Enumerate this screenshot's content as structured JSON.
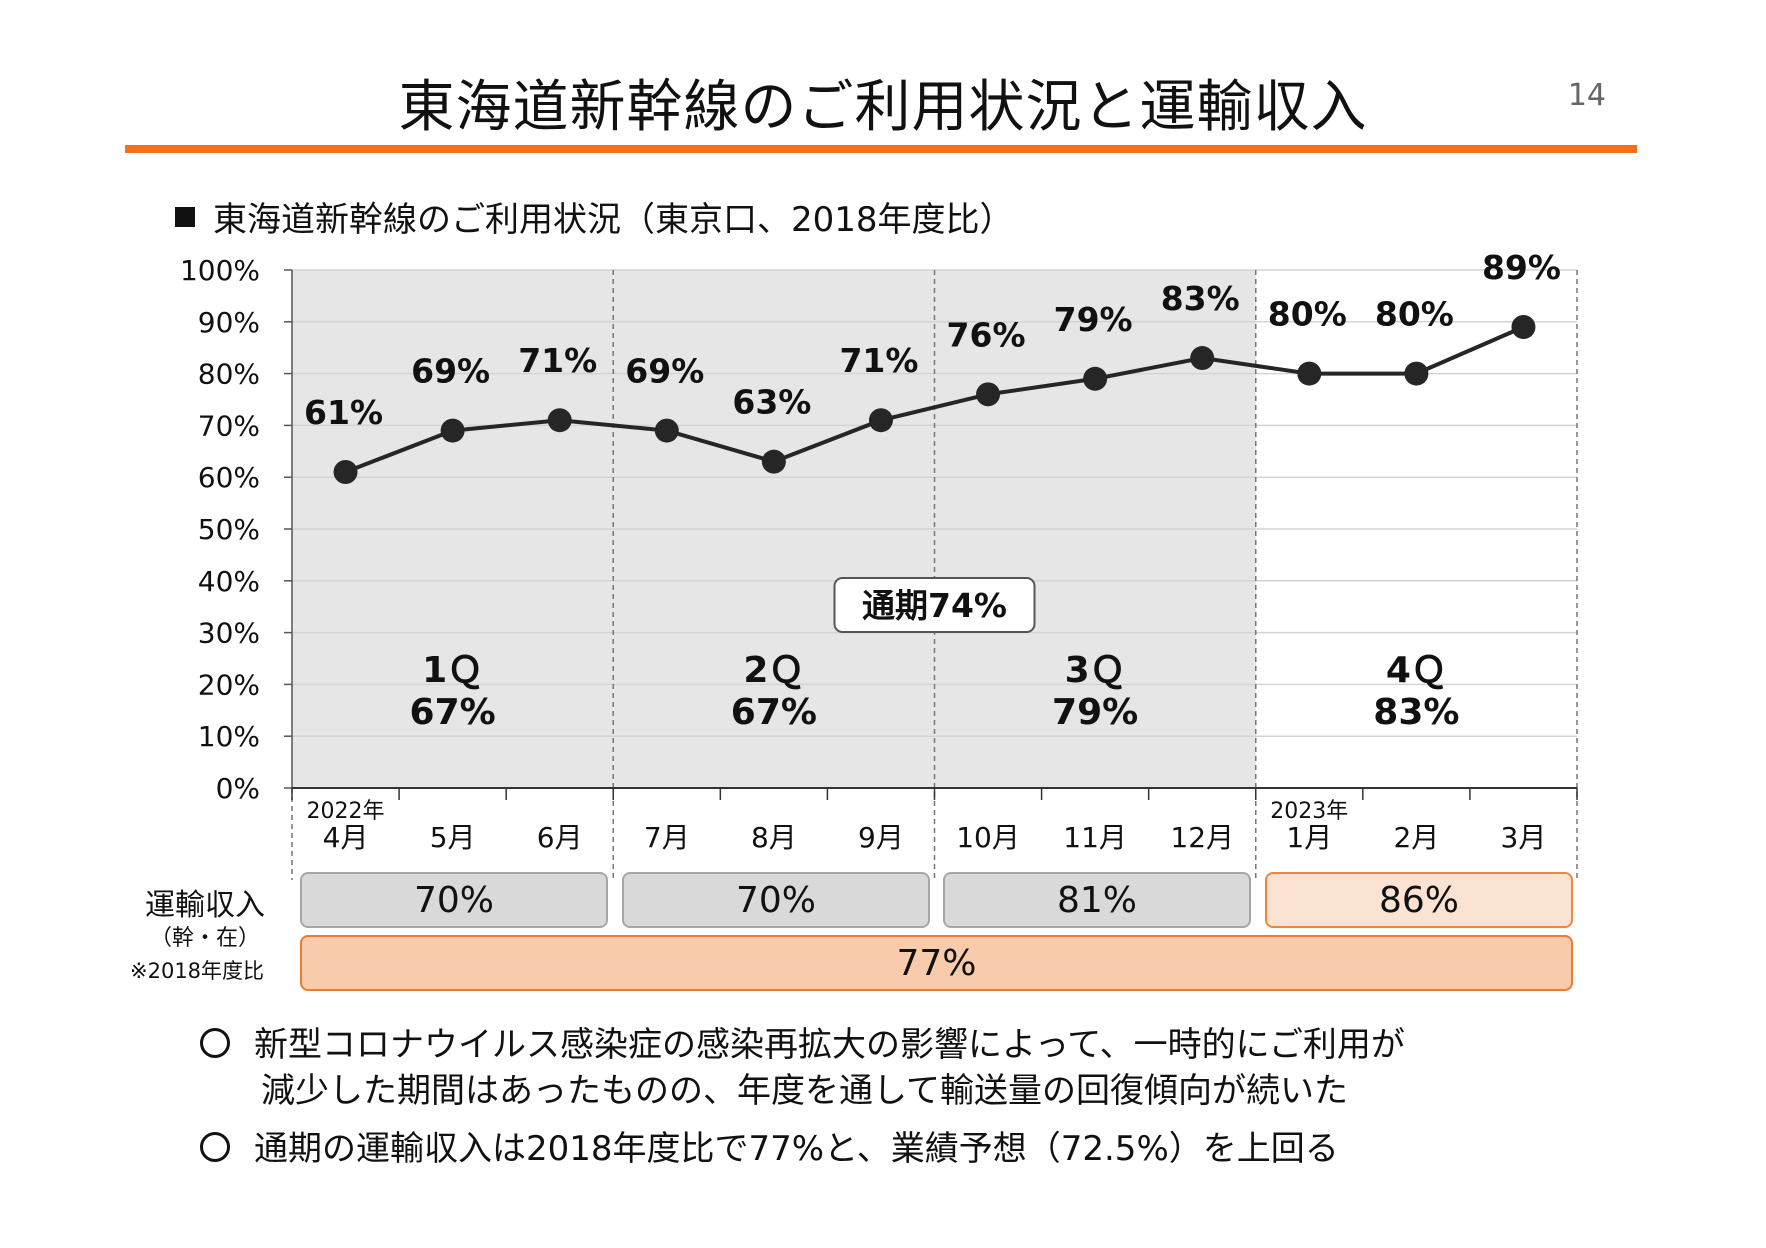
{
  "page": {
    "title": "東海道新幹線のご利用状況と運輸収入",
    "page_number": "14",
    "accent_color": "#f2701e"
  },
  "section": {
    "heading": "東海道新幹線のご利用状況（東京口、2018年度比）"
  },
  "chart_data": {
    "type": "line",
    "title": "東海道新幹線のご利用状況（東京口、2018年度比）",
    "categories": [
      "4月",
      "5月",
      "6月",
      "7月",
      "8月",
      "9月",
      "10月",
      "11月",
      "12月",
      "1月",
      "2月",
      "3月"
    ],
    "year_labels": [
      {
        "category_index": 0,
        "text": "2022年"
      },
      {
        "category_index": 9,
        "text": "2023年"
      }
    ],
    "series": [
      {
        "name": "ご利用状況",
        "values": [
          61,
          69,
          71,
          69,
          63,
          71,
          76,
          79,
          83,
          80,
          80,
          89
        ]
      }
    ],
    "point_labels": [
      "61%",
      "69%",
      "71%",
      "69%",
      "63%",
      "71%",
      "76%",
      "79%",
      "83%",
      "80%",
      "80%",
      "89%"
    ],
    "ylim": [
      0,
      100
    ],
    "y_ticks": [
      "0%",
      "10%",
      "20%",
      "30%",
      "40%",
      "50%",
      "60%",
      "70%",
      "80%",
      "90%",
      "100%"
    ],
    "quarters": [
      {
        "name": "1Ｑ",
        "value": "67%",
        "shaded": true
      },
      {
        "name": "2Ｑ",
        "value": "67%",
        "shaded": true
      },
      {
        "name": "3Ｑ",
        "value": "79%",
        "shaded": true
      },
      {
        "name": "4Ｑ",
        "value": "83%",
        "shaded": false
      }
    ],
    "annual_callout": "通期74%",
    "shade_color": "#e6e6e6",
    "line_color": "#262626"
  },
  "revenue": {
    "label": "運輸収入",
    "sublabel": "（幹・在）",
    "note": "※2018年度比",
    "quarters": [
      "70%",
      "70%",
      "81%",
      "86%"
    ],
    "total": "77%"
  },
  "bullets": [
    {
      "line1": "新型コロナウイルス感染症の感染再拡大の影響によって、一時的にご利用が",
      "line2": "減少した期間はあったものの、年度を通して輸送量の回復傾向が続いた"
    },
    {
      "line1": "通期の運輸収入は2018年度比で77%と、業績予想（72.5%）を上回る",
      "line2": ""
    }
  ]
}
